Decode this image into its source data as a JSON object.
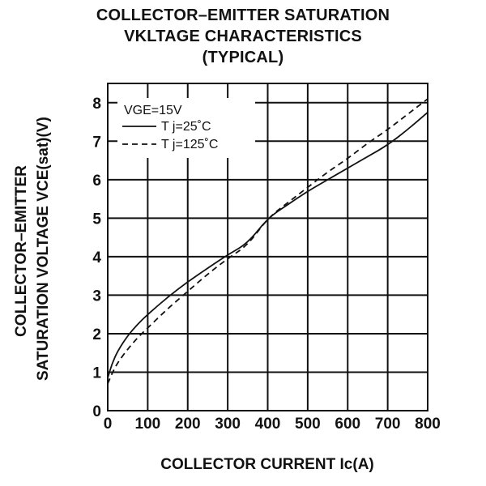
{
  "chart_data": {
    "type": "line",
    "title": [
      "COLLECTOR–EMITTER SATURATION",
      "VKLTAGE CHARACTERISTICS",
      "(TYPICAL)"
    ],
    "xlabel": "COLLECTOR CURRENT Ic(A)",
    "ylabel": [
      "COLLECTOR–EMITTER",
      "SATURATION VOLTAGE VCE(sat)(V)"
    ],
    "xlim": [
      0,
      800
    ],
    "ylim": [
      0,
      8.5
    ],
    "x_ticks": [
      0,
      100,
      200,
      300,
      400,
      500,
      600,
      700,
      800
    ],
    "y_ticks": [
      0,
      1,
      2,
      3,
      4,
      5,
      6,
      7,
      8
    ],
    "grid": true,
    "legend_title": "VGE=15V",
    "legend_position": "top-left",
    "series": [
      {
        "name": "T j=25˚C",
        "style": "solid",
        "x": [
          0,
          10,
          25,
          50,
          75,
          100,
          150,
          200,
          250,
          300,
          350,
          400,
          450,
          500,
          550,
          600,
          650,
          700,
          750,
          800
        ],
        "y": [
          0.85,
          1.2,
          1.55,
          1.95,
          2.25,
          2.5,
          2.95,
          3.35,
          3.7,
          4.05,
          4.35,
          5.0,
          5.35,
          5.7,
          6.0,
          6.3,
          6.6,
          6.9,
          7.3,
          7.75
        ]
      },
      {
        "name": "T j=125˚C",
        "style": "dashed",
        "x": [
          0,
          10,
          25,
          50,
          75,
          100,
          150,
          200,
          250,
          300,
          350,
          400,
          450,
          500,
          550,
          600,
          650,
          700,
          750,
          800
        ],
        "y": [
          0.7,
          0.95,
          1.25,
          1.6,
          1.9,
          2.15,
          2.65,
          3.1,
          3.55,
          3.95,
          4.3,
          5.0,
          5.4,
          5.8,
          6.2,
          6.55,
          6.95,
          7.3,
          7.7,
          8.1
        ]
      }
    ]
  }
}
